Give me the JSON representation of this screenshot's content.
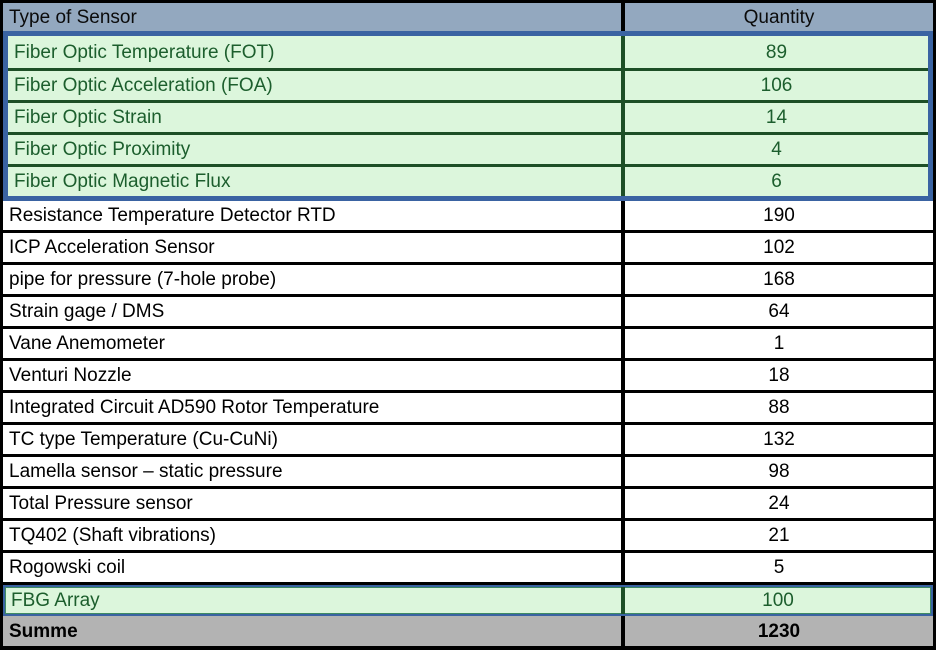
{
  "table": {
    "columns": [
      "Type of Sensor",
      "Quantity"
    ],
    "highlight_group": {
      "rows": [
        {
          "label": "Fiber Optic Temperature (FOT)",
          "quantity": "89"
        },
        {
          "label": "Fiber Optic Acceleration (FOA)",
          "quantity": "106"
        },
        {
          "label": "Fiber Optic Strain",
          "quantity": "14"
        },
        {
          "label": "Fiber Optic Proximity",
          "quantity": "4"
        },
        {
          "label": "Fiber Optic Magnetic Flux",
          "quantity": "6"
        }
      ]
    },
    "rows": [
      {
        "label": "Resistance Temperature Detector RTD",
        "quantity": "190"
      },
      {
        "label": "ICP Acceleration Sensor",
        "quantity": "102"
      },
      {
        "label": "pipe for pressure (7-hole probe)",
        "quantity": "168"
      },
      {
        "label": "Strain gage / DMS",
        "quantity": "64"
      },
      {
        "label": "Vane Anemometer",
        "quantity": "1"
      },
      {
        "label": "Venturi Nozzle",
        "quantity": "18"
      },
      {
        "label": "Integrated Circuit AD590 Rotor Temperature",
        "quantity": "88"
      },
      {
        "label": "TC type Temperature (Cu-CuNi)",
        "quantity": "132"
      },
      {
        "label": "Lamella sensor – static pressure",
        "quantity": "98"
      },
      {
        "label": "Total Pressure sensor",
        "quantity": "24"
      },
      {
        "label": "TQ402 (Shaft vibrations)",
        "quantity": "21"
      },
      {
        "label": "Rogowski coil",
        "quantity": "5"
      }
    ],
    "fbg_row": {
      "label": "FBG Array",
      "quantity": "100"
    },
    "footer": {
      "label": "Summe",
      "total": "1230"
    }
  },
  "colors": {
    "header_bg": "#93a8bf",
    "highlight_border": "#3a63a2",
    "green_bg": "#dcf6dc",
    "green_border": "#1d4f26",
    "green_text": "#1c5e2d",
    "footer_bg": "#b3b3b3",
    "grid": "#000000"
  }
}
